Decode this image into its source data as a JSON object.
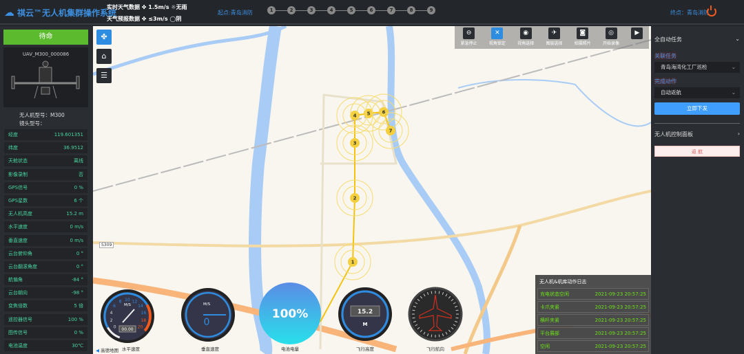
{
  "header": {
    "title": "祺云™无人机集群操作系统",
    "realtime_label": "实时天气数据",
    "realtime_wind": "1.5m/s",
    "realtime_weather": "无雨",
    "forecast_label": "天气预报数据",
    "forecast_wind": "≤3m/s",
    "forecast_weather": "阴",
    "start": "起点:青岛消防",
    "end": "终点：青岛消防",
    "steps": [
      "1",
      "2",
      "3",
      "4",
      "5",
      "6",
      "7",
      "8",
      "9"
    ]
  },
  "left": {
    "status": "待命",
    "uav_id": "UAV_M300_000086",
    "model": "无人机型号：M300",
    "lens": "镜头型号：",
    "rows": [
      {
        "k": "经度",
        "v": "119.601351"
      },
      {
        "k": "纬度",
        "v": "36.9512"
      },
      {
        "k": "天舱状态",
        "v": "离线"
      },
      {
        "k": "影像录制",
        "v": "否"
      },
      {
        "k": "GPS信号",
        "v": "0 %"
      },
      {
        "k": "GPS星数",
        "v": "6 个"
      },
      {
        "k": "无人机高度",
        "v": "15.2 m"
      },
      {
        "k": "水平速度",
        "v": "0 m/s"
      },
      {
        "k": "垂直速度",
        "v": "0 m/s"
      },
      {
        "k": "云台俯仰角",
        "v": "0 °"
      },
      {
        "k": "云台翻滚角度",
        "v": "0 °"
      },
      {
        "k": "航偏角",
        "v": "-84 °"
      },
      {
        "k": "云台朝向",
        "v": "-98 °"
      },
      {
        "k": "变焦倍数",
        "v": "5 倍"
      },
      {
        "k": "遥控器信号",
        "v": "100 %"
      },
      {
        "k": "图传信号",
        "v": "0 %"
      },
      {
        "k": "电池温度",
        "v": "30℃"
      }
    ]
  },
  "toolbar": [
    {
      "icon": "stop-icon",
      "label": "紧急停止",
      "glyph": "⊖"
    },
    {
      "icon": "view-lock-icon",
      "label": "视角锁定",
      "glyph": "✕"
    },
    {
      "icon": "view-select-icon",
      "label": "视角选择",
      "glyph": "◉"
    },
    {
      "icon": "layer-icon",
      "label": "图层选择",
      "glyph": "✈"
    },
    {
      "icon": "camera-icon",
      "label": "拍摄照片",
      "glyph": "◙"
    },
    {
      "icon": "record-icon",
      "label": "开始录像",
      "glyph": "◎"
    },
    {
      "icon": "play-icon",
      "label": "",
      "glyph": "▶"
    }
  ],
  "map": {
    "waypoints": [
      "1",
      "2",
      "3",
      "4",
      "5",
      "6",
      "7"
    ],
    "road_label": "S309",
    "attribution": "高德地图"
  },
  "gauges": {
    "hspeed": {
      "unit": "M/S",
      "readout": "00.00",
      "label": "水平速度",
      "ticks": [
        "0",
        "2",
        "4",
        "6",
        "8",
        "10",
        "12",
        "14",
        "16",
        "18",
        "20"
      ]
    },
    "vspeed": {
      "unit": "M/S",
      "value": "0",
      "label": "垂直速度"
    },
    "battery": {
      "value": "100%",
      "label": "电池电量",
      "percent": 100
    },
    "altitude": {
      "value": "15.2",
      "unit": "M",
      "label": "飞行高度"
    },
    "heading": {
      "label": "飞行航向",
      "heading_deg": -84
    }
  },
  "right": {
    "auto_task": "全自动任务",
    "task_label": "关联任务",
    "task_value": "青岛海湾化工厂巡检",
    "action_label": "完成动作",
    "action_value": "自动返航",
    "issue": "立即下发",
    "control_panel": "无人机控制面板",
    "return": "返 航"
  },
  "log": {
    "title": "无人机&机库动作日志",
    "rows": [
      {
        "e": "充电状态空闲",
        "t": "2021-09-23 20:57:25"
      },
      {
        "e": "卡爪夹紧",
        "t": "2021-09-23 20:57:25"
      },
      {
        "e": "横杆夹紧",
        "t": "2021-09-23 20:57:25"
      },
      {
        "e": "平台展部",
        "t": "2021-09-23 20:57:25"
      },
      {
        "e": "空闲",
        "t": "2021-09-23 20:57:25"
      }
    ]
  },
  "colors": {
    "accent": "#409eff",
    "status_green": "#5cba2e",
    "value_teal": "#48d6a0",
    "log_green": "#6ee21a",
    "power": "#f05a1e"
  }
}
